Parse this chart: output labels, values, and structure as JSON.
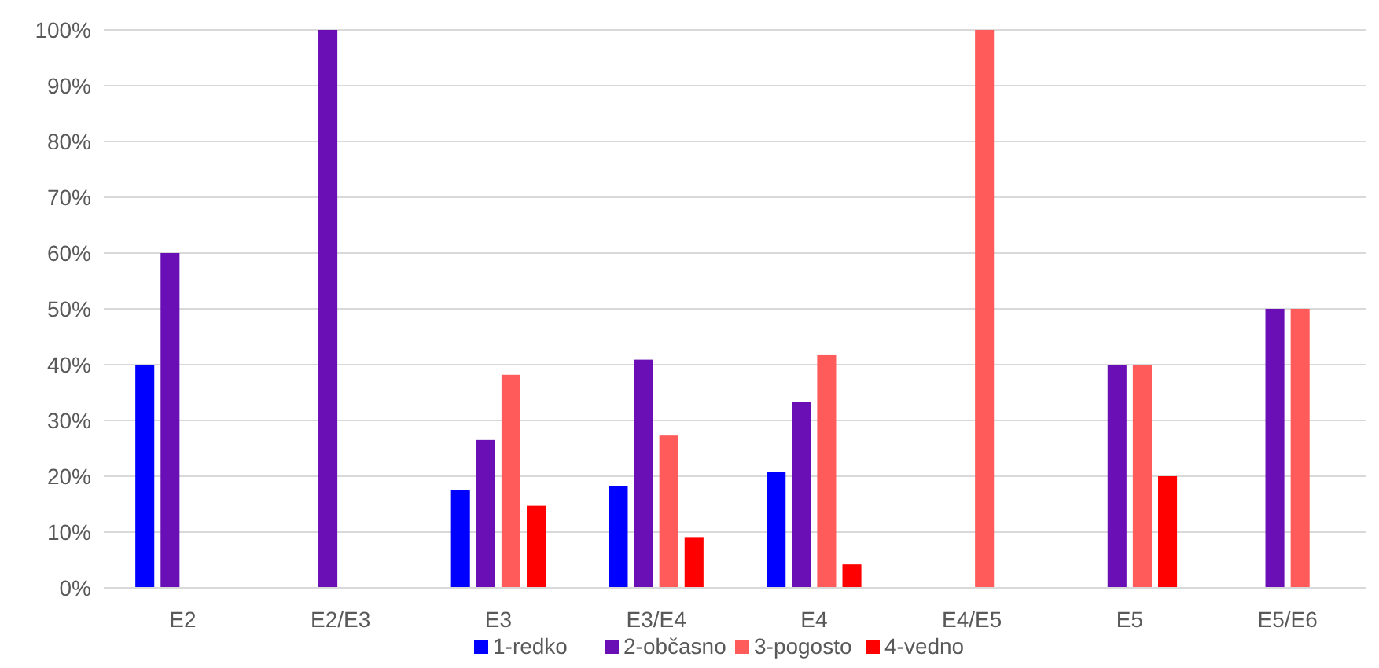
{
  "chart_data": {
    "type": "bar",
    "categories": [
      "E2",
      "E2/E3",
      "E3",
      "E3/E4",
      "E4",
      "E4/E5",
      "E5",
      "E5/E6"
    ],
    "series": [
      {
        "name": "1-redko",
        "color": "#0000ff",
        "values": [
          40,
          0,
          17.6,
          18.2,
          20.8,
          0,
          0,
          0
        ]
      },
      {
        "name": "2-občasno",
        "color": "#6a0fb5",
        "values": [
          60,
          100,
          26.5,
          40.9,
          33.3,
          0,
          40,
          50
        ]
      },
      {
        "name": "3-pogosto",
        "color": "#ff5b5b",
        "values": [
          0,
          0,
          38.2,
          27.3,
          41.7,
          100,
          40,
          50
        ]
      },
      {
        "name": "4-vedno",
        "color": "#ff0000",
        "values": [
          0,
          0,
          14.7,
          9.1,
          4.2,
          0,
          20,
          0
        ]
      }
    ],
    "ylim": [
      0,
      100
    ],
    "yticks": [
      {
        "value": 0,
        "label": "0%"
      },
      {
        "value": 10,
        "label": "10%"
      },
      {
        "value": 20,
        "label": "20%"
      },
      {
        "value": 30,
        "label": "30%"
      },
      {
        "value": 40,
        "label": "40%"
      },
      {
        "value": 50,
        "label": "50%"
      },
      {
        "value": 60,
        "label": "60%"
      },
      {
        "value": 70,
        "label": "70%"
      },
      {
        "value": 80,
        "label": "80%"
      },
      {
        "value": 90,
        "label": "90%"
      },
      {
        "value": 100,
        "label": "100%"
      }
    ],
    "grid": "y",
    "legend": "bottom"
  }
}
